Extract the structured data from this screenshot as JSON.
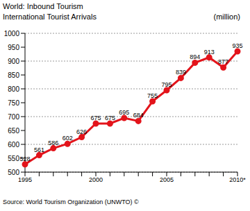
{
  "chart_data": {
    "type": "line",
    "title": "World: Inbound Tourism",
    "subtitle": "International Tourist Arrivals",
    "y_label": "(million)",
    "source": "Source: World Tourism Organization (UNWTO) ©",
    "categories": [
      "1995",
      null,
      null,
      null,
      null,
      "2000",
      null,
      null,
      null,
      null,
      "2005",
      null,
      null,
      null,
      null,
      "2010*"
    ],
    "values": [
      528,
      561,
      586,
      602,
      626,
      675,
      675,
      695,
      684,
      755,
      795,
      839,
      894,
      913,
      877,
      935
    ],
    "color": "#e3141b",
    "marker": "circle",
    "line_style": "solid",
    "ylim": [
      500,
      1000
    ],
    "yticks": [
      500,
      550,
      600,
      650,
      700,
      750,
      800,
      850,
      900,
      950,
      1000
    ],
    "grid": true,
    "data_labels": true
  }
}
